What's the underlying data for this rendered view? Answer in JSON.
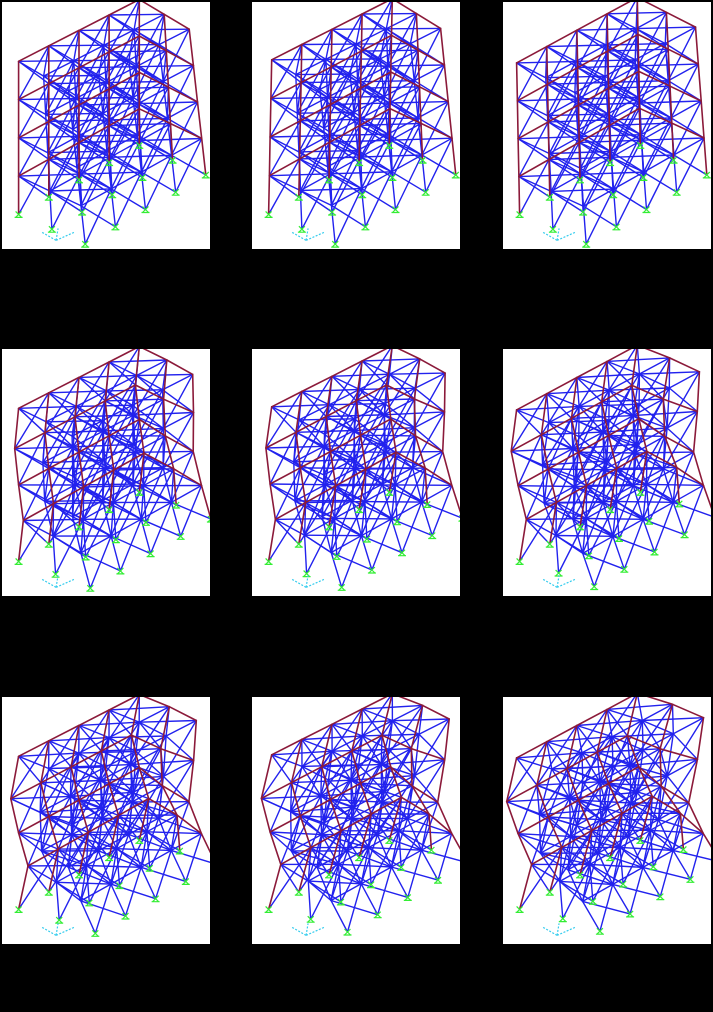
{
  "figure": {
    "background": "#000000",
    "panel_background": "#ffffff",
    "colors": {
      "brace": "#2222ee",
      "frame": "#8b1a3a",
      "support": "#33ee33",
      "axis": "#33ccee"
    },
    "panels": [
      {
        "id": "mode-1",
        "twist": 0.2,
        "wave": 0.0,
        "sway": 0.0
      },
      {
        "id": "mode-2",
        "twist": 0.22,
        "wave": 0.0,
        "sway": 0.05
      },
      {
        "id": "mode-3",
        "twist": 0.1,
        "wave": 0.0,
        "sway": -0.05
      },
      {
        "id": "mode-4",
        "twist": 0.2,
        "wave": 0.35,
        "sway": 0.0
      },
      {
        "id": "mode-5",
        "twist": 0.22,
        "wave": 0.45,
        "sway": 0.05
      },
      {
        "id": "mode-6",
        "twist": 0.12,
        "wave": 0.55,
        "sway": -0.05
      },
      {
        "id": "mode-7",
        "twist": 0.2,
        "wave": 0.7,
        "sway": 0.0
      },
      {
        "id": "mode-8",
        "twist": 0.22,
        "wave": 0.85,
        "sway": 0.05
      },
      {
        "id": "mode-9",
        "twist": 0.12,
        "wave": 0.95,
        "sway": -0.05
      }
    ]
  }
}
